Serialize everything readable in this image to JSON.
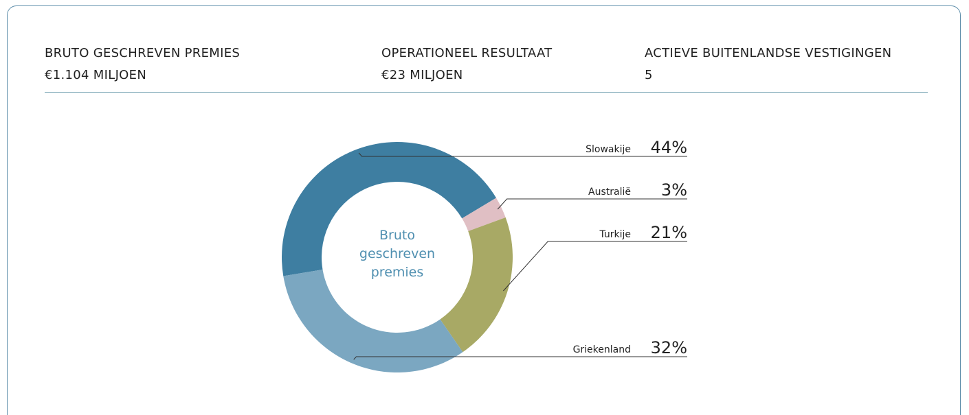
{
  "stats": [
    {
      "label": "BRUTO GESCHREVEN PREMIES",
      "value": "€1.104 MILJOEN"
    },
    {
      "label": "OPERATIONEEL RESULTAAT",
      "value": "€23 MILJOEN"
    },
    {
      "label": "ACTIEVE BUITENLANDSE VESTIGINGEN",
      "value": "5"
    }
  ],
  "chart_data": {
    "type": "donut",
    "center_label": "Bruto geschreven premies",
    "categories": [
      "Slowakije",
      "Australië",
      "Turkije",
      "Griekenland"
    ],
    "values": [
      44,
      3,
      21,
      32
    ],
    "value_labels": [
      "44%",
      "3%",
      "21%",
      "32%"
    ],
    "colors": [
      "#3e7ea1",
      "#e0bfc4",
      "#a8a965",
      "#7ba7c1"
    ]
  }
}
